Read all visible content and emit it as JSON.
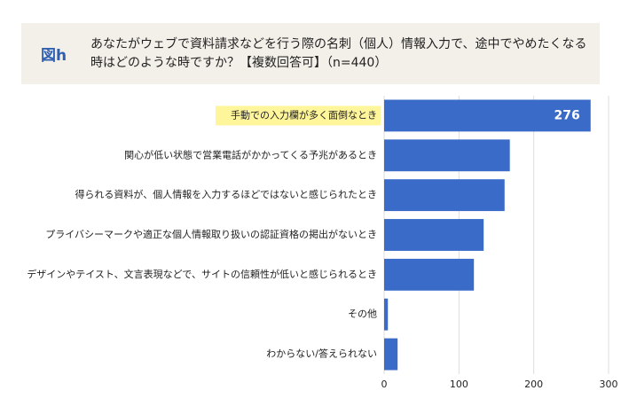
{
  "chart_data": {
    "type": "bar",
    "orientation": "horizontal",
    "figure_label": "図h",
    "title": "あなたがウェブで資料請求などを行う際の名刺（個人）情報入力で、途中でやめたくなる時はどのような時ですか？【複数回答可】（n=440）",
    "categories": [
      "手動での入力欄が多く面倒なとき",
      "関心が低い状態で営業電話がかかってくる予兆があるとき",
      "得られる資料が、個人情報を入力するほどではないと感じられたとき",
      "プライバシーマークや適正な個人情報取り扱いの認証資格の掲出がないとき",
      "デザインやテイスト、文言表現などで、サイトの信頼性が低いと感じられるとき",
      "その他",
      "わからない/答えられない"
    ],
    "values": [
      276,
      168,
      161,
      133,
      120,
      5,
      18
    ],
    "value_labels": [
      "276",
      null,
      null,
      null,
      null,
      null,
      null
    ],
    "color": "#3a6bc8",
    "highlight": {
      "index": 0,
      "color": "#fff59a"
    },
    "xlim": [
      0,
      300
    ],
    "xticks": [
      0,
      100,
      200,
      300
    ],
    "grid": true
  }
}
